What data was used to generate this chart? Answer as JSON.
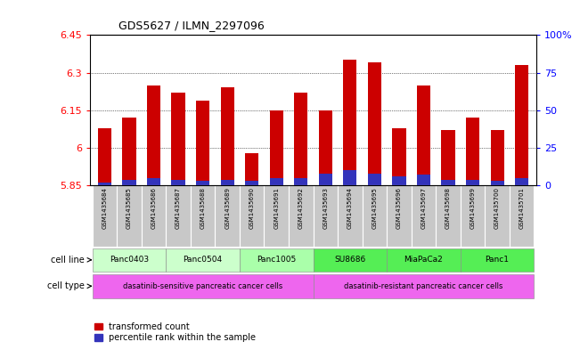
{
  "title": "GDS5627 / ILMN_2297096",
  "samples": [
    "GSM1435684",
    "GSM1435685",
    "GSM1435686",
    "GSM1435687",
    "GSM1435688",
    "GSM1435689",
    "GSM1435690",
    "GSM1435691",
    "GSM1435692",
    "GSM1435693",
    "GSM1435694",
    "GSM1435695",
    "GSM1435696",
    "GSM1435697",
    "GSM1435698",
    "GSM1435699",
    "GSM1435700",
    "GSM1435701"
  ],
  "transformed_count": [
    6.08,
    6.12,
    6.25,
    6.22,
    6.19,
    6.24,
    5.98,
    6.15,
    6.22,
    6.15,
    6.35,
    6.34,
    6.08,
    6.25,
    6.07,
    6.12,
    6.07,
    6.33
  ],
  "percentile_rank": [
    2,
    4,
    5,
    4,
    3,
    4,
    3,
    5,
    5,
    8,
    10,
    8,
    6,
    7,
    4,
    4,
    3,
    5
  ],
  "ymin": 5.85,
  "ymax": 6.45,
  "yticks": [
    5.85,
    6.0,
    6.15,
    6.3,
    6.45
  ],
  "ytick_labels": [
    "5.85",
    "6",
    "6.15",
    "6.3",
    "6.45"
  ],
  "right_ytick_labels": [
    "0",
    "25",
    "50",
    "75",
    "100%"
  ],
  "bar_color_red": "#CC0000",
  "bar_color_blue": "#3333BB",
  "cell_lines": [
    {
      "label": "Panc0403",
      "start": 0,
      "end": 3,
      "color": "#CCFFCC"
    },
    {
      "label": "Panc0504",
      "start": 3,
      "end": 6,
      "color": "#CCFFCC"
    },
    {
      "label": "Panc1005",
      "start": 6,
      "end": 9,
      "color": "#AAFFAA"
    },
    {
      "label": "SU8686",
      "start": 9,
      "end": 12,
      "color": "#55EE55"
    },
    {
      "label": "MiaPaCa2",
      "start": 12,
      "end": 15,
      "color": "#55EE55"
    },
    {
      "label": "Panc1",
      "start": 15,
      "end": 18,
      "color": "#55EE55"
    }
  ],
  "cell_types": [
    {
      "label": "dasatinib-sensitive pancreatic cancer cells",
      "start": 0,
      "end": 9
    },
    {
      "label": "dasatinib-resistant pancreatic cancer cells",
      "start": 9,
      "end": 18
    }
  ],
  "cell_type_color": "#EE66EE",
  "sample_bg_color": "#C8C8C8",
  "legend_red_label": "transformed count",
  "legend_blue_label": "percentile rank within the sample",
  "fig_width": 6.51,
  "fig_height": 3.93,
  "dpi": 100
}
